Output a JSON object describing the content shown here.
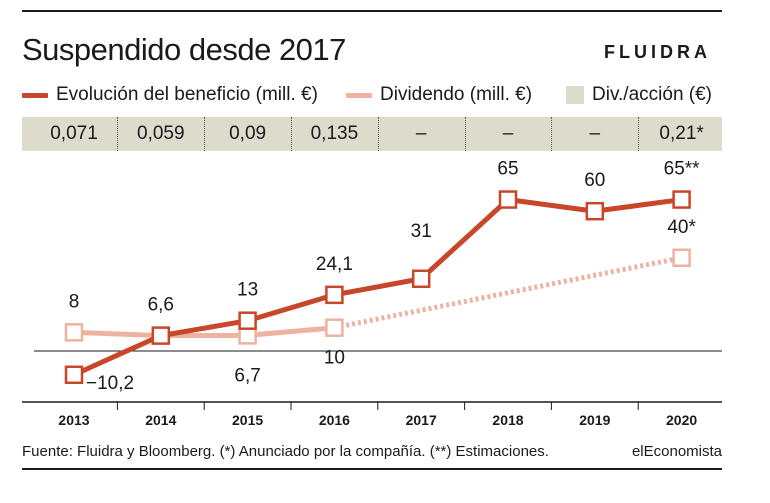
{
  "header": {
    "title": "Suspendido desde 2017",
    "logo": "FLUIDRA"
  },
  "legend": {
    "profit": "Evolución del beneficio (mill. €)",
    "dividend": "Dividendo (mill. €)",
    "dps": "Div./acción (€)"
  },
  "colors": {
    "profit": "#c8472b",
    "dividend": "#eeb3a0",
    "band": "#dcdbcc",
    "text": "#1a1a1a"
  },
  "footer": {
    "source": "Fuente: Fluidra y Bloomberg. (*) Anunciado por la compañía. (**) Estimaciones.",
    "brand": "elEconomista"
  },
  "chart_data": {
    "type": "line",
    "categories": [
      "2013",
      "2014",
      "2015",
      "2016",
      "2017",
      "2018",
      "2019",
      "2020"
    ],
    "dividend_per_share": [
      "0,071",
      "0,059",
      "0,09",
      "0,135",
      "–",
      "–",
      "–",
      "0,21*"
    ],
    "series": [
      {
        "name": "Evolución del beneficio (mill. €)",
        "values": [
          -10.2,
          6.6,
          13,
          24.1,
          31,
          65,
          60,
          65
        ],
        "labels": [
          "−10,2",
          "6,6",
          "13",
          "24,1",
          "31",
          "65",
          "60",
          "65**"
        ]
      },
      {
        "name": "Dividendo (mill. €)",
        "values": [
          8,
          6.6,
          6.7,
          10,
          null,
          null,
          null,
          40
        ],
        "labels": [
          "8",
          "",
          "6,7",
          "10",
          "",
          "",
          "",
          "40*"
        ]
      }
    ]
  }
}
